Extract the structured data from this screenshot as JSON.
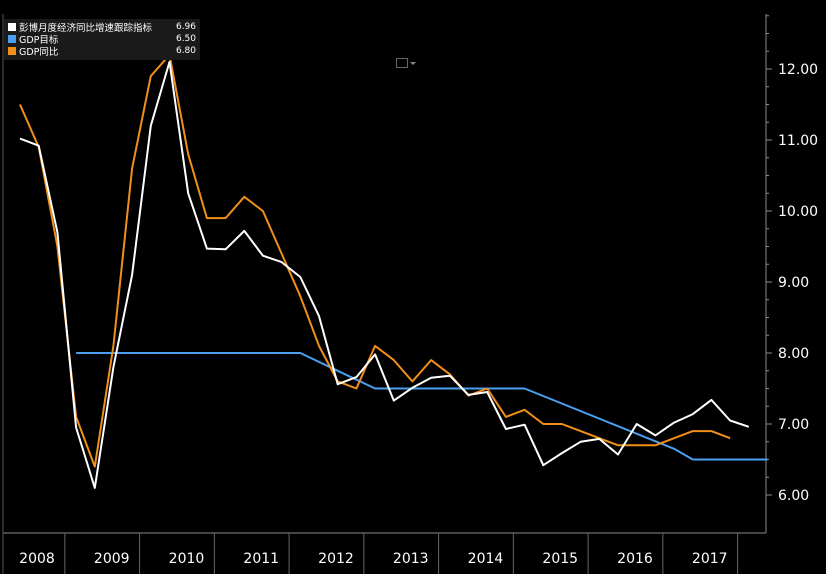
{
  "legend": [
    {
      "label": "彭博月度经济同比增速跟踪指标",
      "value": "6.96",
      "color": "#ffffff"
    },
    {
      "label": "GDP目标",
      "value": "6.50",
      "color": "#4a9ff0"
    },
    {
      "label": "GDP同比",
      "value": "6.80",
      "color": "#f0901a"
    }
  ],
  "icons": {
    "chart_type": "line-chart-icon",
    "dropdown": "chevron-down-icon"
  },
  "chart_data": {
    "type": "line",
    "title": "",
    "xlabel": "",
    "ylabel": "",
    "x_range": [
      2008.0,
      2018.0
    ],
    "ylim": [
      5.6,
      12.6
    ],
    "y_ticks": [
      "6.00",
      "7.00",
      "8.00",
      "9.00",
      "10.00",
      "11.00",
      "12.00"
    ],
    "x_categories": [
      "2008",
      "2009",
      "2010",
      "2011",
      "2012",
      "2013",
      "2014",
      "2015",
      "2016",
      "2017"
    ],
    "y_axis_position": "right",
    "legend_position": "top-left",
    "grid": false,
    "series": [
      {
        "name": "彭博月度经济同比增速跟踪指标",
        "color": "#ffffff",
        "points": [
          [
            2008.0,
            11.02
          ],
          [
            2008.25,
            10.92
          ],
          [
            2008.5,
            9.7
          ],
          [
            2008.75,
            6.95
          ],
          [
            2009.0,
            6.1
          ],
          [
            2009.25,
            7.8
          ],
          [
            2009.5,
            9.1
          ],
          [
            2009.75,
            11.2
          ],
          [
            2010.0,
            12.1
          ],
          [
            2010.25,
            10.25
          ],
          [
            2010.5,
            9.47
          ],
          [
            2010.75,
            9.46
          ],
          [
            2011.0,
            9.72
          ],
          [
            2011.25,
            9.37
          ],
          [
            2011.5,
            9.28
          ],
          [
            2011.75,
            9.07
          ],
          [
            2012.0,
            8.52
          ],
          [
            2012.25,
            7.56
          ],
          [
            2012.5,
            7.66
          ],
          [
            2012.75,
            7.98
          ],
          [
            2013.0,
            7.33
          ],
          [
            2013.25,
            7.51
          ],
          [
            2013.5,
            7.65
          ],
          [
            2013.75,
            7.68
          ],
          [
            2014.0,
            7.41
          ],
          [
            2014.25,
            7.45
          ],
          [
            2014.5,
            6.93
          ],
          [
            2014.75,
            6.99
          ],
          [
            2015.0,
            6.42
          ],
          [
            2015.25,
            6.59
          ],
          [
            2015.5,
            6.75
          ],
          [
            2015.75,
            6.79
          ],
          [
            2016.0,
            6.57
          ],
          [
            2016.25,
            7.0
          ],
          [
            2016.5,
            6.84
          ],
          [
            2016.75,
            7.02
          ],
          [
            2017.0,
            7.14
          ],
          [
            2017.25,
            7.34
          ],
          [
            2017.5,
            7.05
          ],
          [
            2017.75,
            6.96
          ]
        ]
      },
      {
        "name": "GDP目标",
        "color": "#4a9ff0",
        "points": [
          [
            2008.75,
            8.0
          ],
          [
            2011.75,
            8.0
          ],
          [
            2012.25,
            7.75
          ],
          [
            2012.75,
            7.5
          ],
          [
            2014.75,
            7.5
          ],
          [
            2016.75,
            6.65
          ],
          [
            2017.0,
            6.5
          ],
          [
            2018.0,
            6.5
          ]
        ]
      },
      {
        "name": "GDP同比",
        "color": "#f0901a",
        "points": [
          [
            2008.0,
            11.5
          ],
          [
            2008.25,
            10.9
          ],
          [
            2008.5,
            9.5
          ],
          [
            2008.75,
            7.1
          ],
          [
            2009.0,
            6.4
          ],
          [
            2009.25,
            8.1
          ],
          [
            2009.5,
            10.6
          ],
          [
            2009.75,
            11.9
          ],
          [
            2010.0,
            12.2
          ],
          [
            2010.25,
            10.8
          ],
          [
            2010.5,
            9.9
          ],
          [
            2010.75,
            9.9
          ],
          [
            2011.0,
            10.2
          ],
          [
            2011.25,
            10.0
          ],
          [
            2011.5,
            9.4
          ],
          [
            2011.75,
            8.8
          ],
          [
            2012.0,
            8.1
          ],
          [
            2012.25,
            7.6
          ],
          [
            2012.5,
            7.5
          ],
          [
            2012.75,
            8.1
          ],
          [
            2013.0,
            7.9
          ],
          [
            2013.25,
            7.6
          ],
          [
            2013.5,
            7.9
          ],
          [
            2013.75,
            7.7
          ],
          [
            2014.0,
            7.4
          ],
          [
            2014.25,
            7.5
          ],
          [
            2014.5,
            7.1
          ],
          [
            2014.75,
            7.2
          ],
          [
            2015.0,
            7.0
          ],
          [
            2015.25,
            7.0
          ],
          [
            2015.5,
            6.9
          ],
          [
            2015.75,
            6.8
          ],
          [
            2016.0,
            6.7
          ],
          [
            2016.25,
            6.7
          ],
          [
            2016.5,
            6.7
          ],
          [
            2016.75,
            6.8
          ],
          [
            2017.0,
            6.9
          ],
          [
            2017.25,
            6.9
          ],
          [
            2017.5,
            6.8
          ]
        ]
      }
    ]
  }
}
